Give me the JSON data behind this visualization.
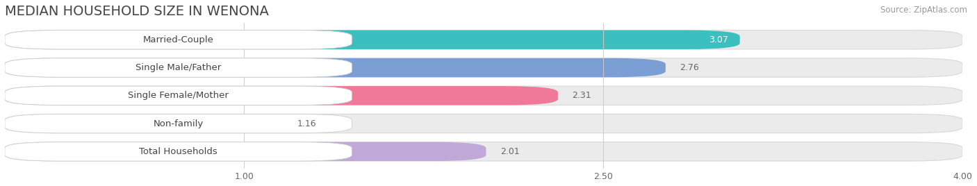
{
  "title": "MEDIAN HOUSEHOLD SIZE IN WENONA",
  "source": "Source: ZipAtlas.com",
  "categories": [
    "Married-Couple",
    "Single Male/Father",
    "Single Female/Mother",
    "Non-family",
    "Total Households"
  ],
  "values": [
    3.07,
    2.76,
    2.31,
    1.16,
    2.01
  ],
  "bar_colors": [
    "#3bbfbf",
    "#7b9fd4",
    "#f07898",
    "#f5cea0",
    "#c0a8d8"
  ],
  "xlim_min": 0.0,
  "xlim_max": 4.0,
  "xticks": [
    1.0,
    2.5,
    4.0
  ],
  "xtick_labels": [
    "1.00",
    "2.50",
    "4.00"
  ],
  "fig_bg_color": "#ffffff",
  "bar_bg_color": "#ebebeb",
  "bar_bg_edge_color": "#d8d8d8",
  "label_bg_color": "#ffffff",
  "label_fontsize": 9.5,
  "value_fontsize": 9,
  "title_fontsize": 14,
  "source_fontsize": 8.5,
  "bar_height": 0.68,
  "bar_spacing": 1.0
}
